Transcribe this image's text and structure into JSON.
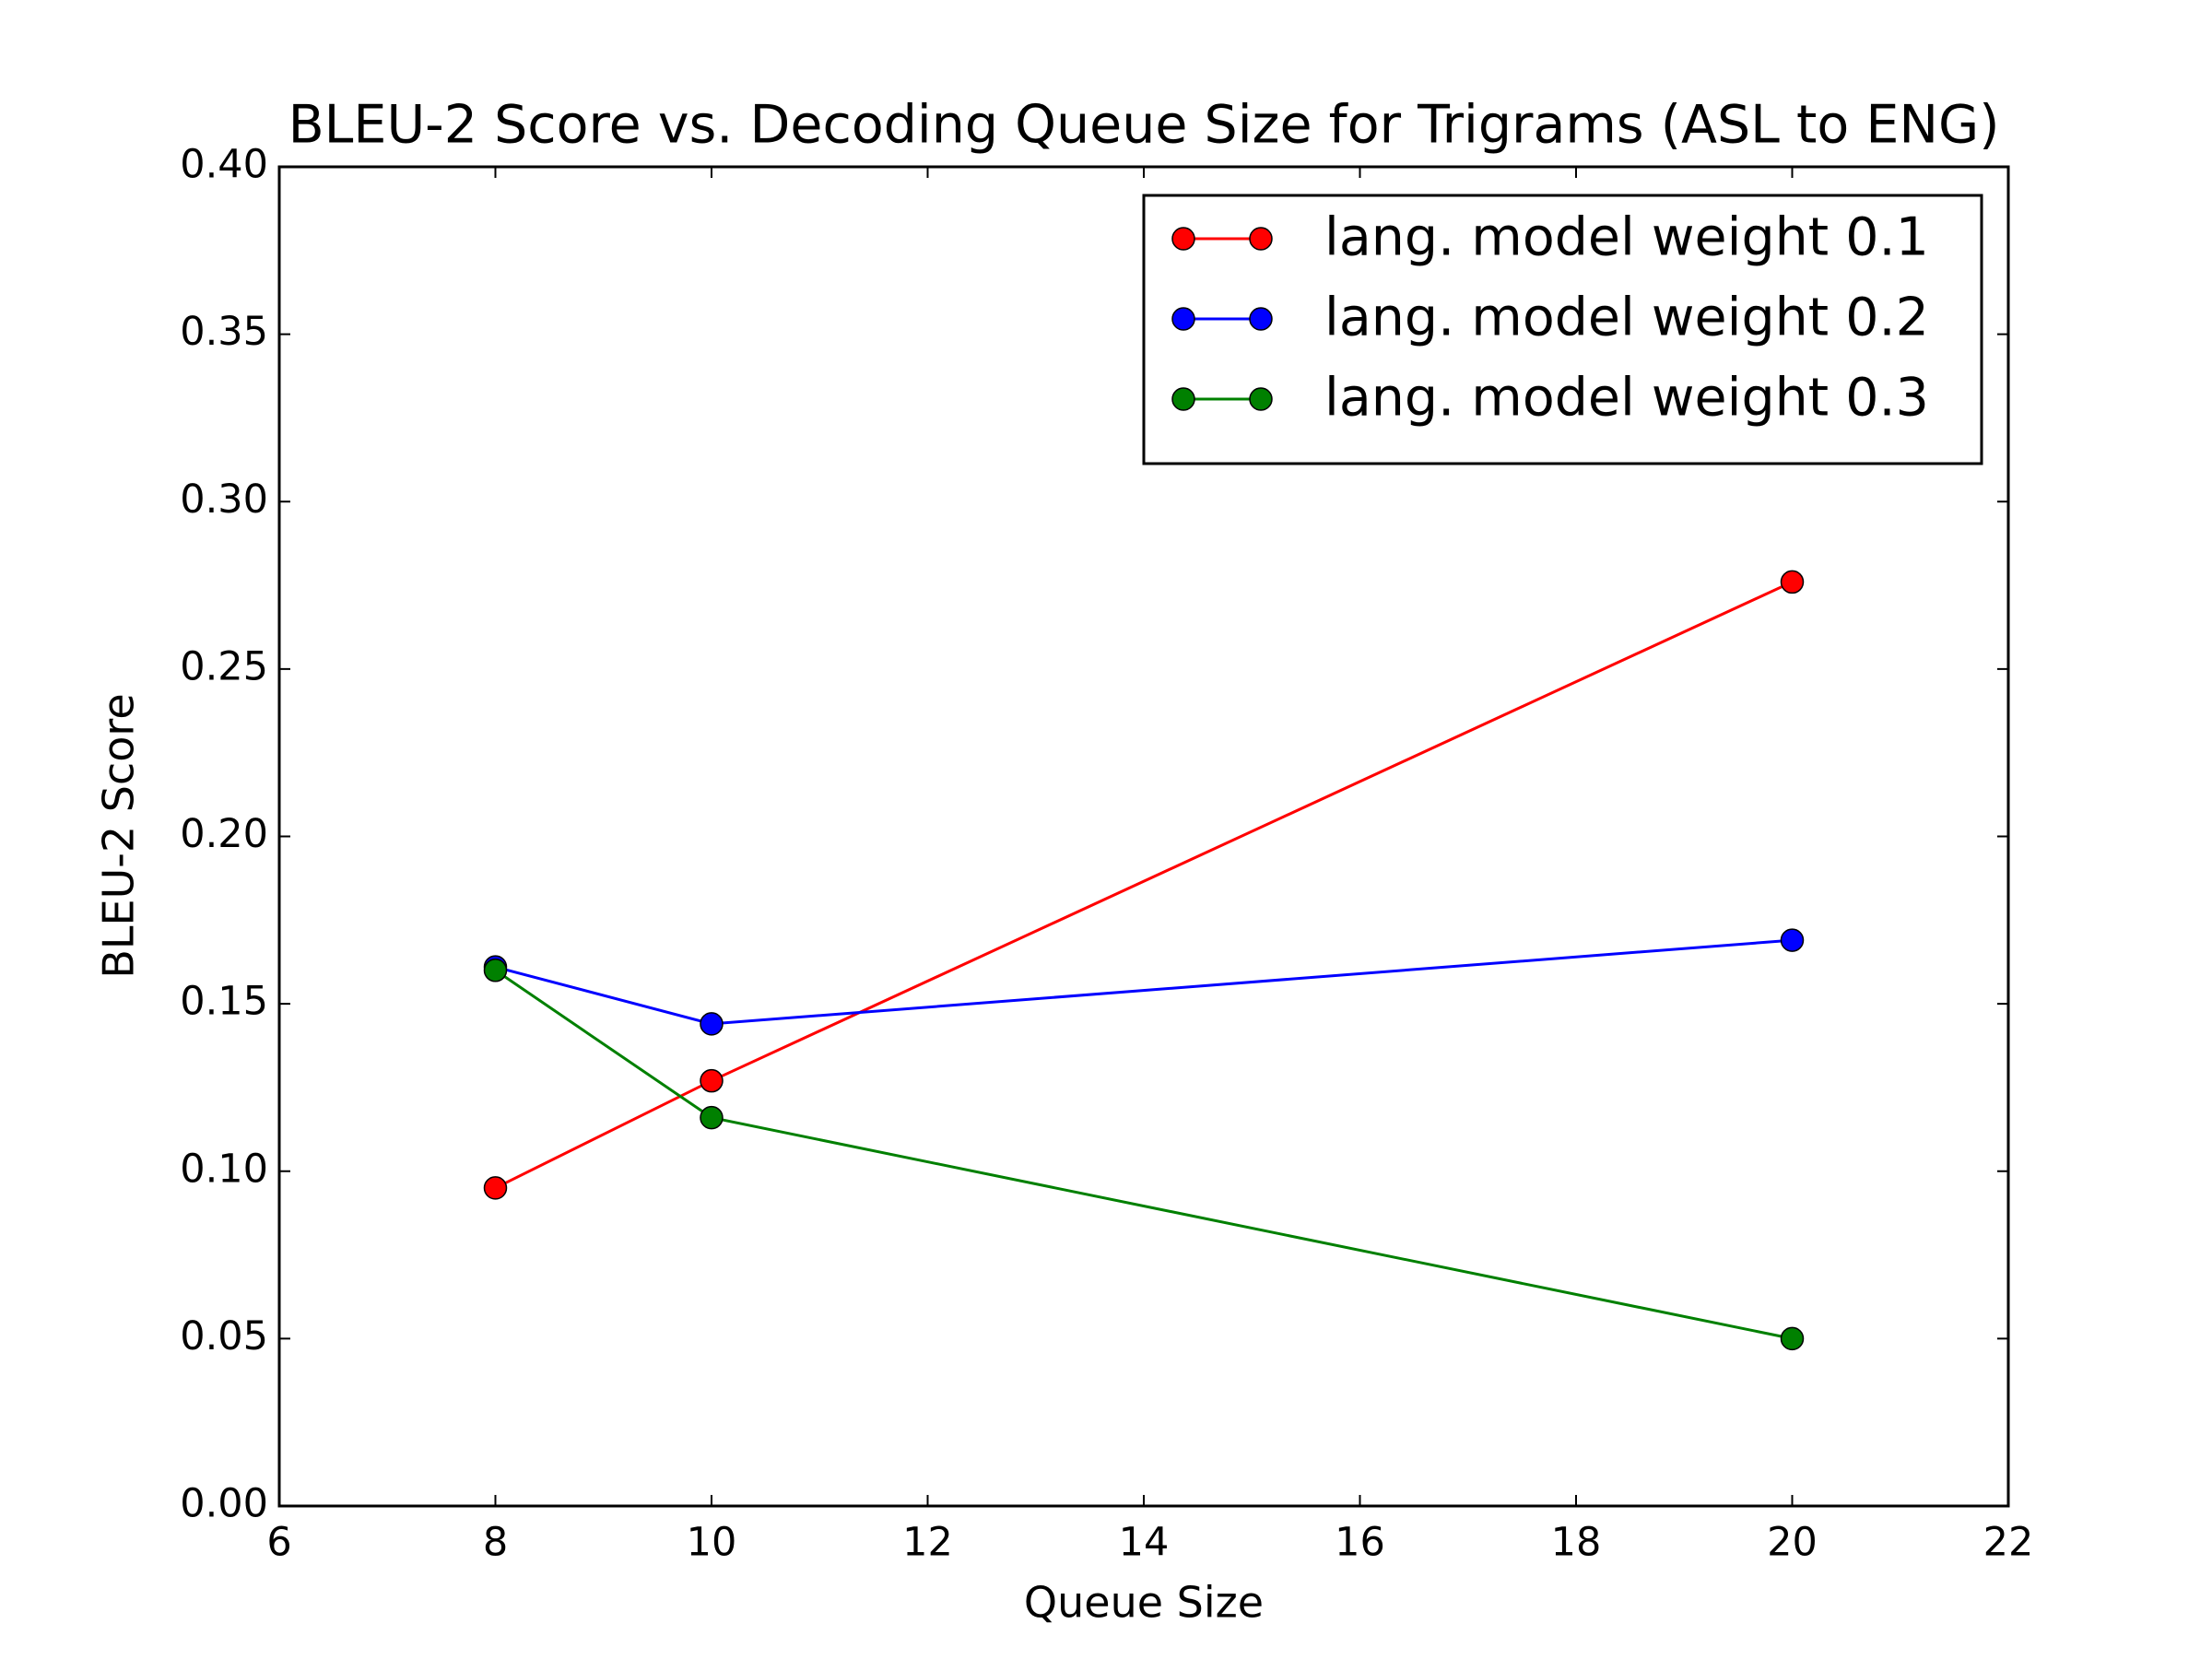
{
  "chart_data": {
    "type": "line",
    "title": "BLEU-2 Score vs. Decoding Queue Size for Trigrams (ASL to ENG)",
    "x_label": "Queue Size",
    "y_label": "BLEU-2 Score",
    "x": [
      8,
      10,
      20
    ],
    "series": [
      {
        "name": "lang. model weight 0.1",
        "color": "#ff0000",
        "values": [
          0.095,
          0.127,
          0.276
        ]
      },
      {
        "name": "lang. model weight 0.2",
        "color": "#0000ff",
        "values": [
          0.161,
          0.144,
          0.169
        ]
      },
      {
        "name": "lang. model weight 0.3",
        "color": "#008000",
        "values": [
          0.16,
          0.116,
          0.05
        ]
      }
    ],
    "xlim": [
      6,
      22
    ],
    "xticks": [
      6,
      8,
      10,
      12,
      14,
      16,
      18,
      20,
      22
    ],
    "ylim": [
      0,
      0.4
    ],
    "yticks": [
      {
        "value": 0,
        "label": "0.00"
      },
      {
        "value": 0.05,
        "label": "0.05"
      },
      {
        "value": 0.1,
        "label": "0.10"
      },
      {
        "value": 0.15,
        "label": "0.15"
      },
      {
        "value": 0.2,
        "label": "0.20"
      },
      {
        "value": 0.25,
        "label": "0.25"
      },
      {
        "value": 0.3,
        "label": "0.30"
      },
      {
        "value": 0.35,
        "label": "0.35"
      },
      {
        "value": 0.4,
        "label": "0.40"
      }
    ],
    "grid": false,
    "legend": "upper right"
  }
}
